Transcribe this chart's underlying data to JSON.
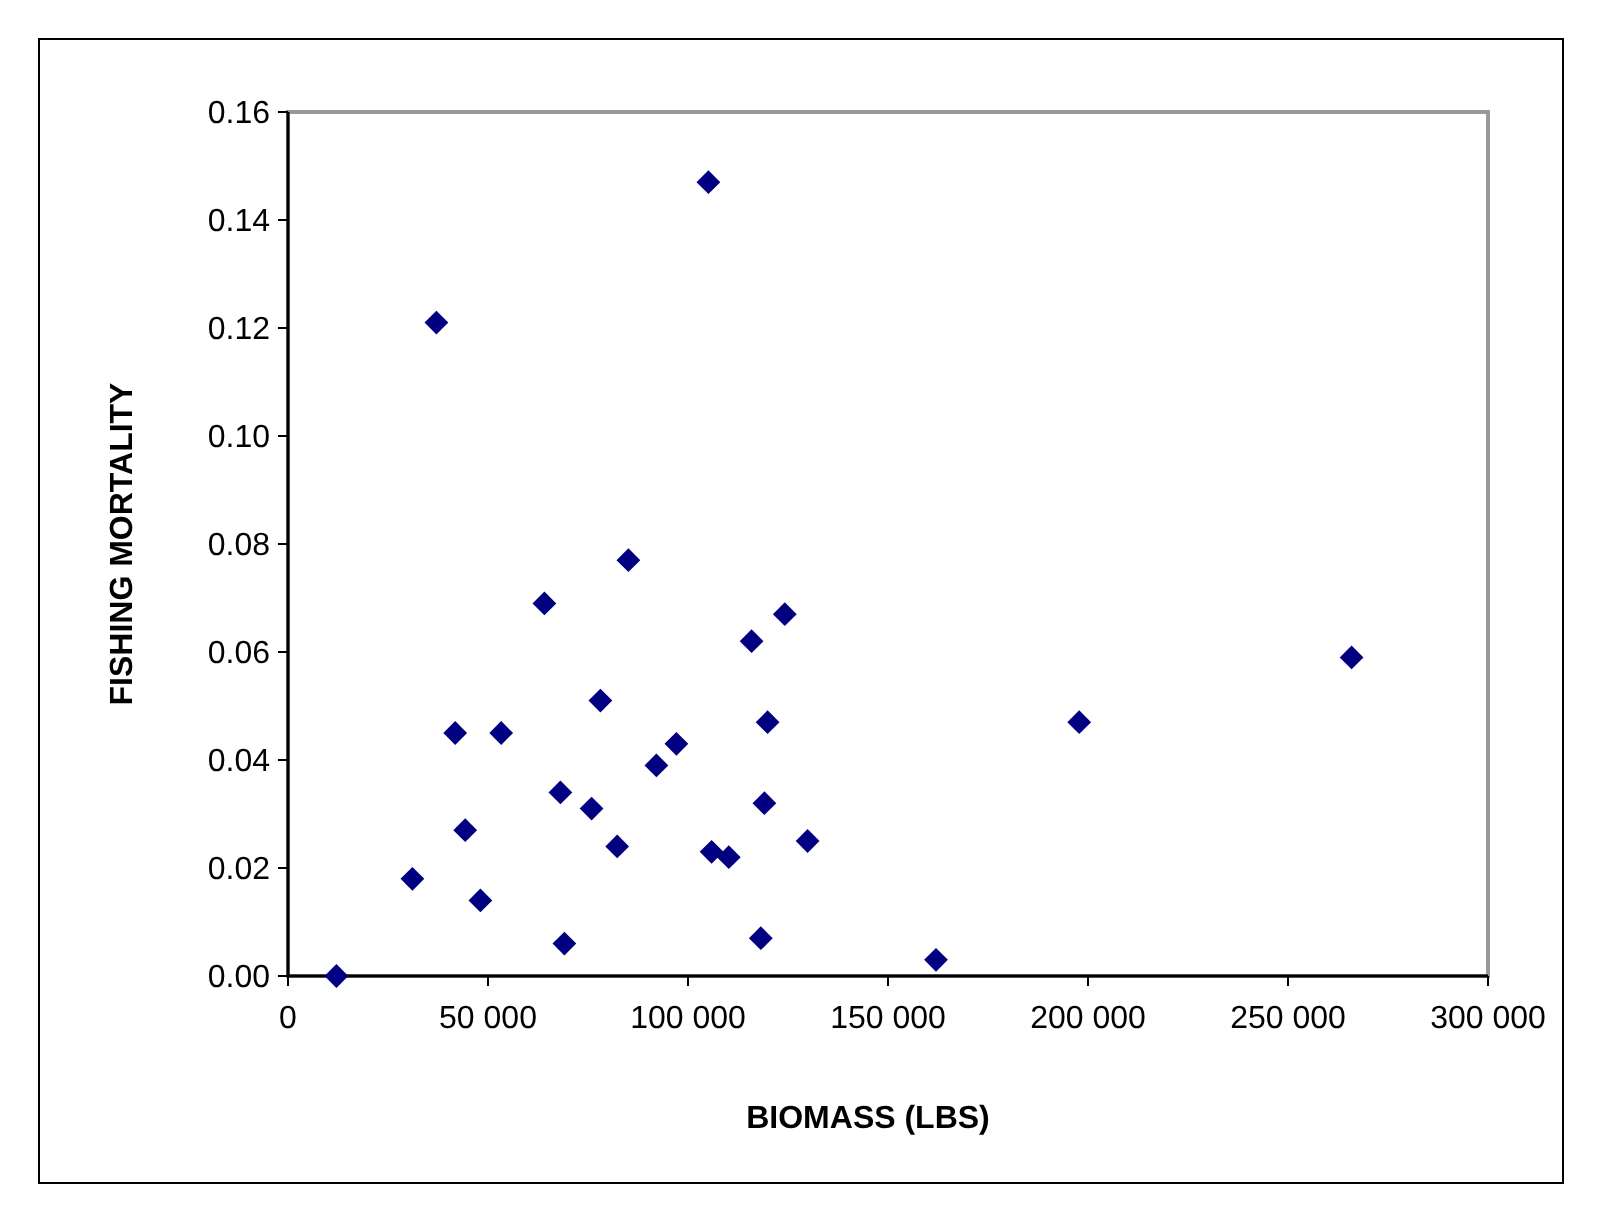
{
  "chart_data": {
    "type": "scatter",
    "xlabel": "BIOMASS (LBS)",
    "ylabel": "FISHING MORTALITY",
    "x": [
      12100,
      31100,
      41800,
      44300,
      48100,
      53300,
      64100,
      68100,
      69100,
      75900,
      78100,
      82300,
      85100,
      92100,
      97100,
      105900,
      110200,
      115900,
      118200,
      119100,
      119900,
      124200,
      129900,
      162000,
      197800,
      265900,
      37100,
      105100
    ],
    "series": [
      {
        "color": "#000080",
        "values": [
          0.0,
          0.018,
          0.045,
          0.027,
          0.014,
          0.045,
          0.069,
          0.034,
          0.006,
          0.031,
          0.051,
          0.024,
          0.077,
          0.039,
          0.043,
          0.023,
          0.022,
          0.062,
          0.007,
          0.032,
          0.047,
          0.067,
          0.025,
          0.003,
          0.047,
          0.059,
          0.121,
          0.147
        ]
      }
    ],
    "xlim": [
      0,
      300000
    ],
    "xticks": [
      0,
      {
        "value": 50000,
        "label": "50 000"
      },
      {
        "value": 100000,
        "label": "100 000"
      },
      {
        "value": 150000,
        "label": "150 000"
      },
      {
        "value": 200000,
        "label": "200 000"
      },
      {
        "value": 250000,
        "label": "250 000"
      },
      {
        "value": 300000,
        "label": "300 000"
      }
    ],
    "ylim": [
      0,
      0.16
    ],
    "yticks": [
      {
        "value": 0,
        "label": "0.00"
      },
      {
        "value": 0.02,
        "label": "0.02"
      },
      {
        "value": 0.04,
        "label": "0.04"
      },
      {
        "value": 0.06,
        "label": "0.06"
      },
      {
        "value": 0.08,
        "label": "0.08"
      },
      {
        "value": 0.1,
        "label": "0.10"
      },
      {
        "value": 0.12,
        "label": "0.12"
      },
      {
        "value": 0.14,
        "label": "0.14"
      },
      {
        "value": 0.16,
        "label": "0.16"
      }
    ],
    "marker": "diamond"
  }
}
